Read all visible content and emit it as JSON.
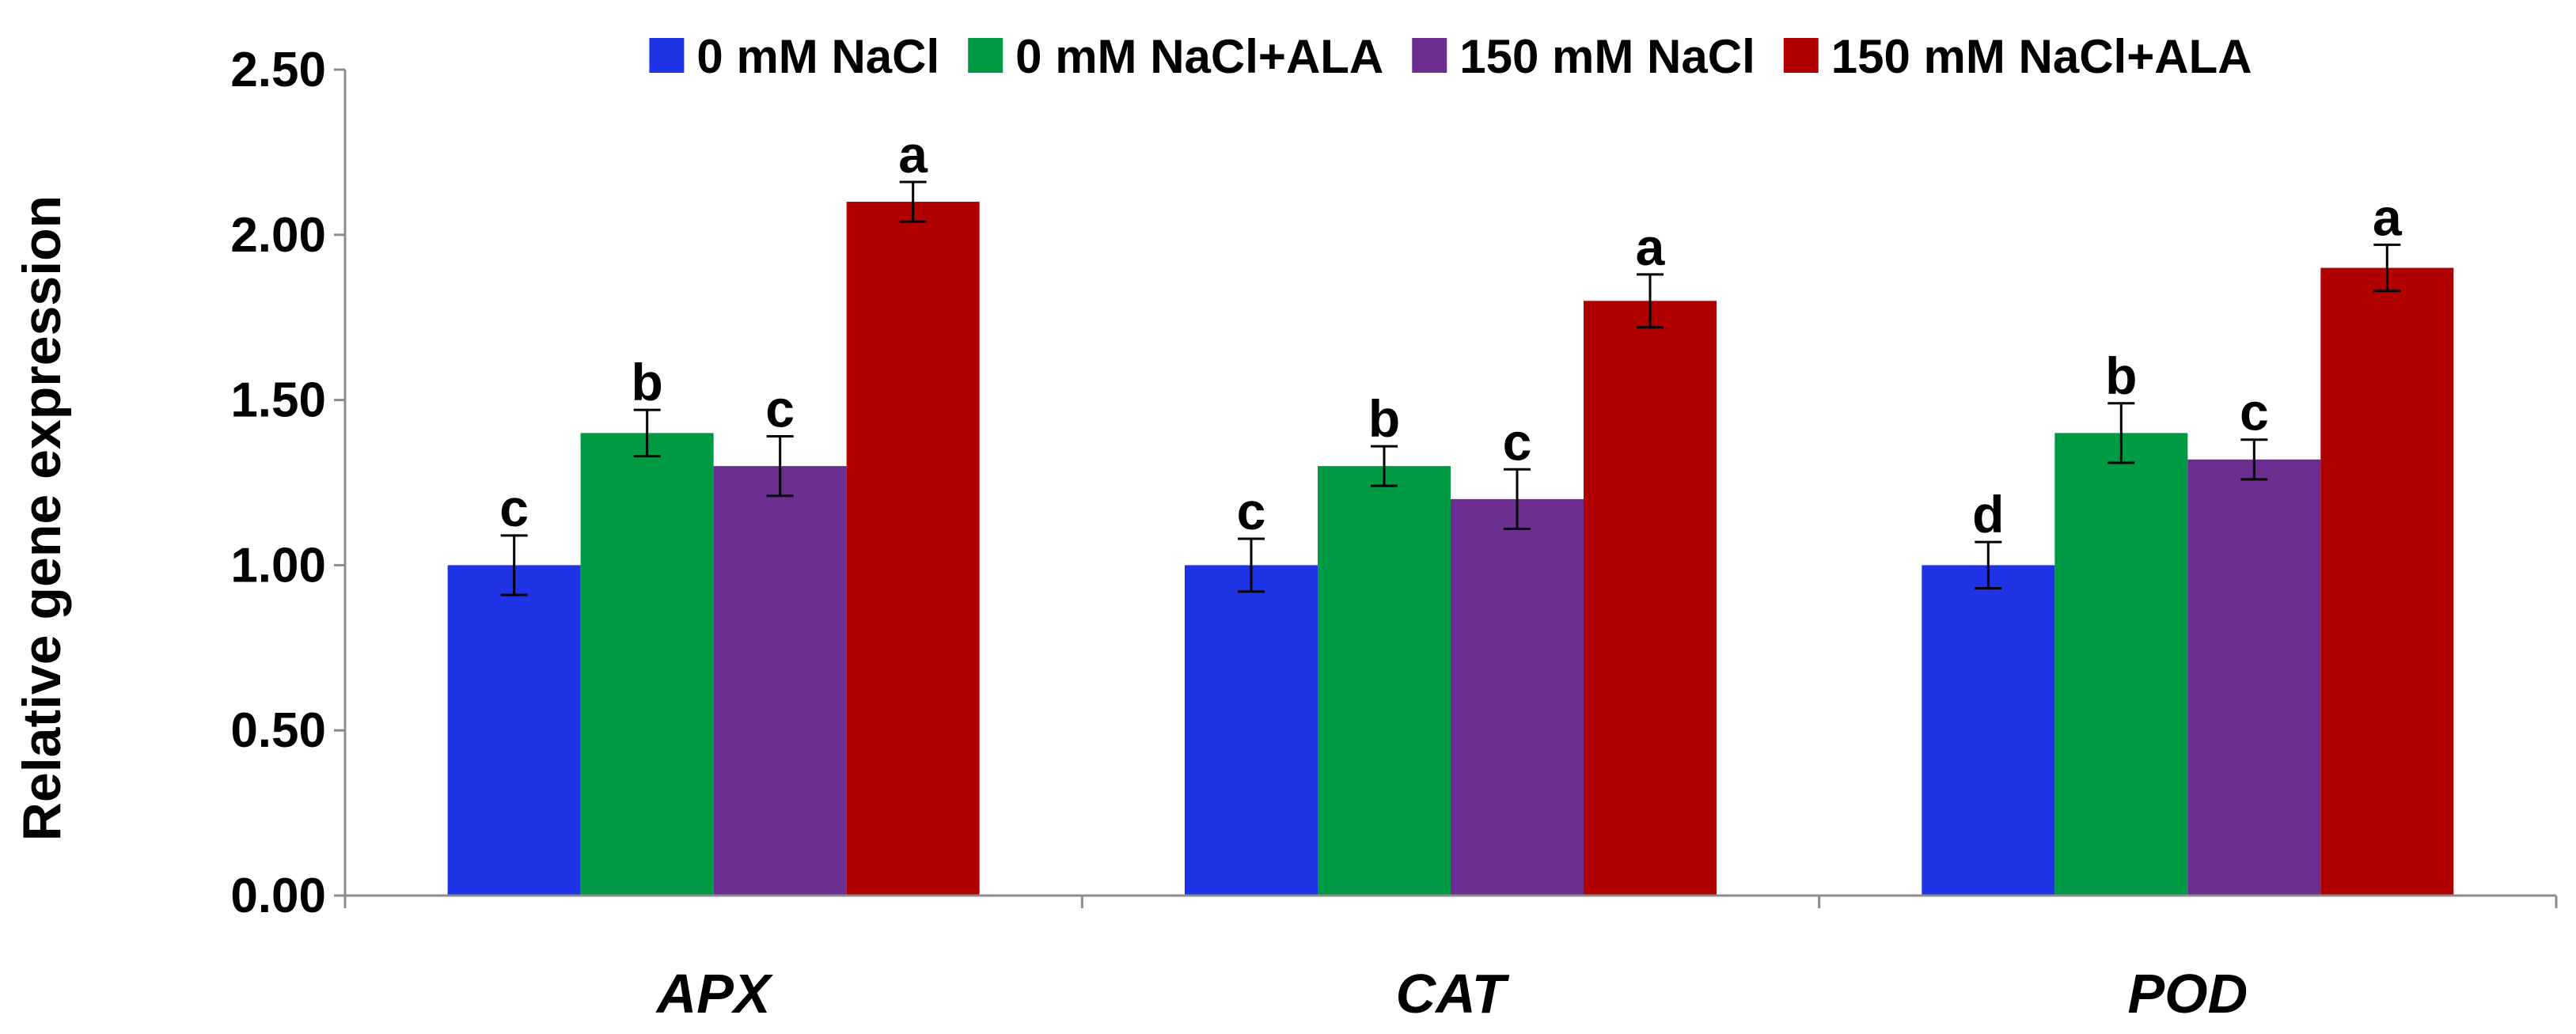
{
  "chart_data": {
    "type": "bar",
    "title": "",
    "xlabel": "",
    "ylabel": "Relative gene expression",
    "ylim": [
      0,
      2.5
    ],
    "yticks": [
      "0.00",
      "0.50",
      "1.00",
      "1.50",
      "2.00",
      "2.50"
    ],
    "ytick_values": [
      0,
      0.5,
      1.0,
      1.5,
      2.0,
      2.5
    ],
    "categories": [
      "APX",
      "CAT",
      "POD"
    ],
    "legend_position": "top",
    "series": [
      {
        "name": "0 mM NaCl",
        "color": "#1f33e6",
        "values": [
          1.0,
          1.0,
          1.0
        ],
        "errors": [
          0.09,
          0.08,
          0.07
        ],
        "letters": [
          "c",
          "c",
          "d"
        ]
      },
      {
        "name": "0 mM NaCl+ALA",
        "color": "#009a44",
        "values": [
          1.4,
          1.3,
          1.4
        ],
        "errors": [
          0.07,
          0.06,
          0.09
        ],
        "letters": [
          "b",
          "b",
          "b"
        ]
      },
      {
        "name": "150 mM NaCl",
        "color": "#6b2d8f",
        "values": [
          1.3,
          1.2,
          1.32
        ],
        "errors": [
          0.09,
          0.09,
          0.06
        ],
        "letters": [
          "c",
          "c",
          "c"
        ]
      },
      {
        "name": "150 mM NaCl+ALA",
        "color": "#b00000",
        "values": [
          2.1,
          1.8,
          1.9
        ],
        "errors": [
          0.06,
          0.08,
          0.07
        ],
        "letters": [
          "a",
          "a",
          "a"
        ]
      }
    ]
  }
}
